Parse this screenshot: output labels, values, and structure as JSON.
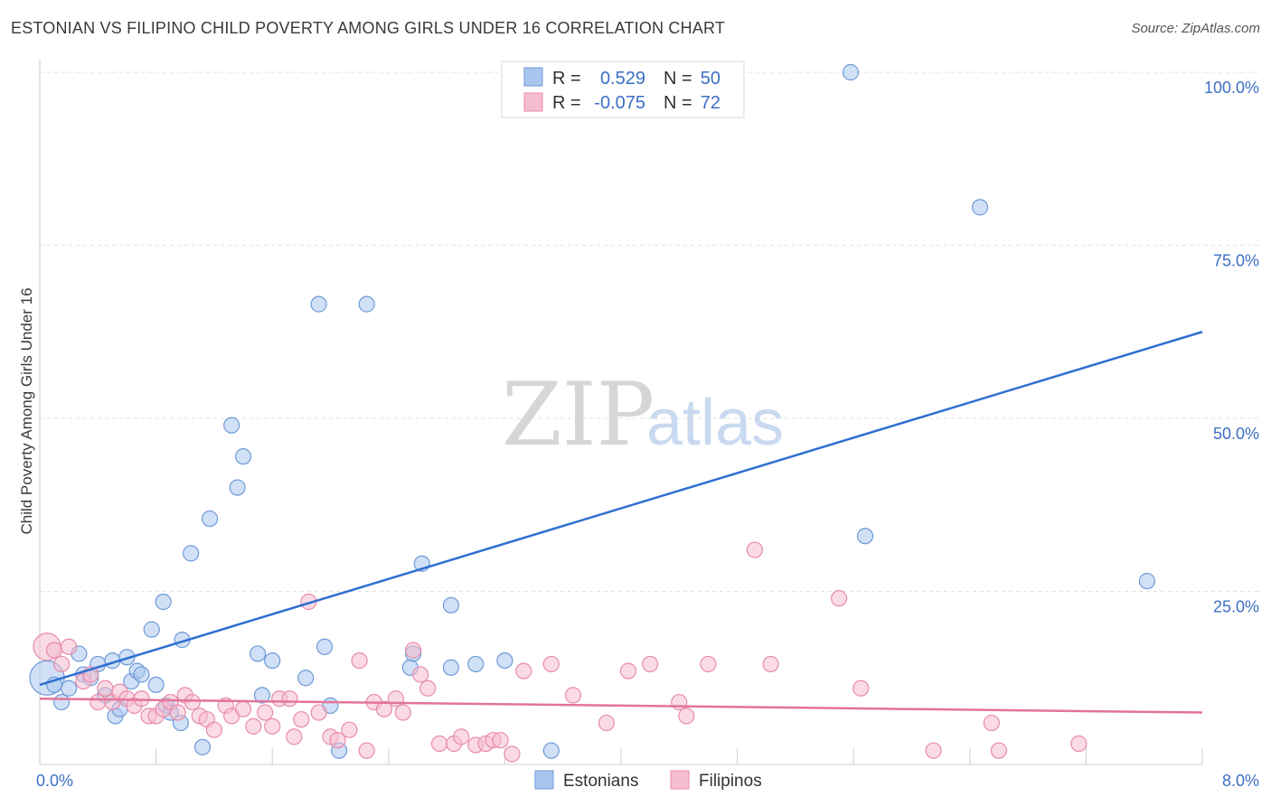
{
  "title": "ESTONIAN VS FILIPINO CHILD POVERTY AMONG GIRLS UNDER 16 CORRELATION CHART",
  "source": "Source: ZipAtlas.com",
  "watermark": {
    "zip": "ZIP",
    "atlas": "atlas"
  },
  "chart_data": {
    "type": "scatter",
    "ylabel": "Child Poverty Among Girls Under 16",
    "xlim": [
      0,
      8
    ],
    "ylim": [
      0,
      100
    ],
    "x_tick_labels": [
      {
        "value": 0,
        "label": "0.0%"
      },
      {
        "value": 8,
        "label": "8.0%"
      }
    ],
    "y_tick_labels": [
      {
        "value": 25,
        "label": "25.0%"
      },
      {
        "value": 50,
        "label": "50.0%"
      },
      {
        "value": 75,
        "label": "75.0%"
      },
      {
        "value": 100,
        "label": "100.0%"
      }
    ],
    "grid": true,
    "legend_top": [
      {
        "r_label": "R =",
        "r_value": "0.529",
        "n_label": "N =",
        "n_value": "50",
        "color": "#a9c6ee",
        "stroke": "#6f9ad8"
      },
      {
        "r_label": "R =",
        "r_value": "-0.075",
        "n_label": "N =",
        "n_value": "72",
        "color": "#f6bdd0",
        "stroke": "#e88aaa"
      }
    ],
    "series": [
      {
        "name": "Estonians",
        "color": "#a9c6ee",
        "stroke": "#6f9ad8",
        "trend_color": "#2f6fd0",
        "trend": [
          [
            0,
            11.5
          ],
          [
            8,
            62.5
          ]
        ],
        "points": [
          [
            0.05,
            12.5
          ],
          [
            0.1,
            11.5
          ],
          [
            0.15,
            9.0
          ],
          [
            0.2,
            11.0
          ],
          [
            0.27,
            16.0
          ],
          [
            0.3,
            13.0
          ],
          [
            0.35,
            12.5
          ],
          [
            0.4,
            14.5
          ],
          [
            0.45,
            10.0
          ],
          [
            0.5,
            15.0
          ],
          [
            0.52,
            7.0
          ],
          [
            0.55,
            8.0
          ],
          [
            0.6,
            15.5
          ],
          [
            0.63,
            12.0
          ],
          [
            0.67,
            13.5
          ],
          [
            0.7,
            13.0
          ],
          [
            0.77,
            19.5
          ],
          [
            0.8,
            11.5
          ],
          [
            0.85,
            23.5
          ],
          [
            0.87,
            8.5
          ],
          [
            0.9,
            7.5
          ],
          [
            0.97,
            6.0
          ],
          [
            0.98,
            18.0
          ],
          [
            1.04,
            30.5
          ],
          [
            1.12,
            2.5
          ],
          [
            1.17,
            35.5
          ],
          [
            1.32,
            49.0
          ],
          [
            1.36,
            40.0
          ],
          [
            1.4,
            44.5
          ],
          [
            1.5,
            16.0
          ],
          [
            1.53,
            10.0
          ],
          [
            1.6,
            15.0
          ],
          [
            1.83,
            12.5
          ],
          [
            1.92,
            66.5
          ],
          [
            1.96,
            17.0
          ],
          [
            2.0,
            8.5
          ],
          [
            2.06,
            2.0
          ],
          [
            2.25,
            66.5
          ],
          [
            2.55,
            14.0
          ],
          [
            2.57,
            16.0
          ],
          [
            2.63,
            29.0
          ],
          [
            2.83,
            23.0
          ],
          [
            2.83,
            14.0
          ],
          [
            3.0,
            14.5
          ],
          [
            3.2,
            15.0
          ],
          [
            3.52,
            2.0
          ],
          [
            5.58,
            100.0
          ],
          [
            5.68,
            33.0
          ],
          [
            6.47,
            80.5
          ],
          [
            7.62,
            26.5
          ]
        ]
      },
      {
        "name": "Filipinos",
        "color": "#f6bdd0",
        "stroke": "#e88aaa",
        "trend_color": "#e2749a",
        "trend": [
          [
            0,
            9.5
          ],
          [
            8,
            7.5
          ]
        ],
        "points": [
          [
            0.05,
            17.0
          ],
          [
            0.1,
            16.5
          ],
          [
            0.15,
            14.5
          ],
          [
            0.2,
            17.0
          ],
          [
            0.3,
            12.0
          ],
          [
            0.35,
            13.0
          ],
          [
            0.4,
            9.0
          ],
          [
            0.45,
            11.0
          ],
          [
            0.5,
            9.0
          ],
          [
            0.55,
            10.5
          ],
          [
            0.6,
            9.5
          ],
          [
            0.65,
            8.5
          ],
          [
            0.7,
            9.5
          ],
          [
            0.75,
            7.0
          ],
          [
            0.8,
            7.0
          ],
          [
            0.85,
            8.0
          ],
          [
            0.9,
            9.0
          ],
          [
            0.95,
            7.5
          ],
          [
            1.0,
            10.0
          ],
          [
            1.05,
            9.0
          ],
          [
            1.1,
            7.0
          ],
          [
            1.15,
            6.5
          ],
          [
            1.2,
            5.0
          ],
          [
            1.28,
            8.5
          ],
          [
            1.32,
            7.0
          ],
          [
            1.4,
            8.0
          ],
          [
            1.47,
            5.5
          ],
          [
            1.55,
            7.5
          ],
          [
            1.6,
            5.5
          ],
          [
            1.65,
            9.5
          ],
          [
            1.72,
            9.5
          ],
          [
            1.75,
            4.0
          ],
          [
            1.8,
            6.5
          ],
          [
            1.85,
            23.5
          ],
          [
            1.92,
            7.5
          ],
          [
            2.0,
            4.0
          ],
          [
            2.05,
            3.5
          ],
          [
            2.13,
            5.0
          ],
          [
            2.2,
            15.0
          ],
          [
            2.25,
            2.0
          ],
          [
            2.3,
            9.0
          ],
          [
            2.37,
            8.0
          ],
          [
            2.45,
            9.5
          ],
          [
            2.5,
            7.5
          ],
          [
            2.57,
            16.5
          ],
          [
            2.62,
            13.0
          ],
          [
            2.67,
            11.0
          ],
          [
            2.75,
            3.0
          ],
          [
            2.85,
            3.0
          ],
          [
            2.9,
            4.0
          ],
          [
            3.0,
            2.8
          ],
          [
            3.07,
            3.0
          ],
          [
            3.12,
            3.5
          ],
          [
            3.17,
            3.5
          ],
          [
            3.25,
            1.5
          ],
          [
            3.33,
            13.5
          ],
          [
            3.52,
            14.5
          ],
          [
            3.67,
            10.0
          ],
          [
            3.9,
            6.0
          ],
          [
            4.05,
            13.5
          ],
          [
            4.2,
            14.5
          ],
          [
            4.4,
            9.0
          ],
          [
            4.45,
            7.0
          ],
          [
            4.6,
            14.5
          ],
          [
            4.92,
            31.0
          ],
          [
            5.03,
            14.5
          ],
          [
            5.5,
            24.0
          ],
          [
            5.65,
            11.0
          ],
          [
            6.15,
            2.0
          ],
          [
            6.55,
            6.0
          ],
          [
            6.6,
            2.0
          ],
          [
            7.15,
            3.0
          ]
        ]
      }
    ]
  }
}
